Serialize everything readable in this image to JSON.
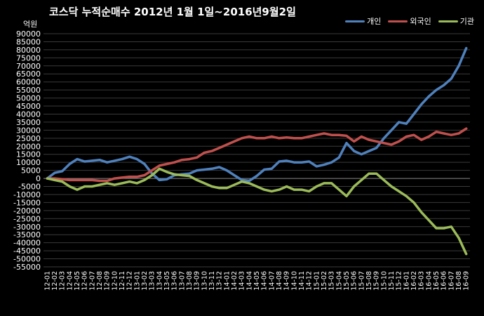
{
  "chart_data": {
    "type": "line",
    "title": "코스닥 누적순매수 2012년 1월 1일~2016년9월2일",
    "ylabel": "억원",
    "ylim": [
      -55000,
      90000
    ],
    "ytick_step": 5000,
    "grid": "horizontal",
    "legend_position": "top-right",
    "x": [
      "12-01",
      "12-02",
      "12-03",
      "12-04",
      "12-05",
      "12-06",
      "12-07",
      "12-08",
      "12-09",
      "12-10",
      "12-11",
      "12-12",
      "13-01",
      "13-02",
      "13-03",
      "13-04",
      "13-05",
      "13-06",
      "13-07",
      "13-08",
      "13-09",
      "13-10",
      "13-11",
      "13-12",
      "14-01",
      "14-02",
      "14-03",
      "14-04",
      "14-05",
      "14-06",
      "14-07",
      "14-08",
      "14-09",
      "14-10",
      "14-11",
      "14-12",
      "15-01",
      "15-02",
      "15-03",
      "15-04",
      "15-05",
      "15-06",
      "15-07",
      "15-08",
      "15-09",
      "15-10",
      "15-11",
      "15-12",
      "16-01",
      "16-02",
      "16-03",
      "16-04",
      "16-05",
      "16-06",
      "16-07",
      "16-08",
      "16-09"
    ],
    "series": [
      {
        "name": "개인",
        "color": "#4f81bd",
        "values": [
          0,
          3500,
          4500,
          9000,
          12000,
          10500,
          11000,
          11500,
          10000,
          11000,
          12000,
          13500,
          12000,
          9000,
          3000,
          -1000,
          -500,
          2000,
          2500,
          3000,
          5000,
          5500,
          6000,
          7000,
          5000,
          2000,
          -1000,
          -1500,
          1500,
          5500,
          6000,
          10500,
          11000,
          10000,
          10000,
          10500,
          7500,
          8500,
          10000,
          13000,
          22000,
          17000,
          15000,
          17000,
          19000,
          25000,
          30000,
          35000,
          34000,
          40000,
          46000,
          51000,
          55000,
          58000,
          62000,
          70000,
          81000
        ]
      },
      {
        "name": "외국인",
        "color": "#c0504d",
        "values": [
          0,
          0,
          -500,
          -1000,
          -1000,
          -1000,
          -1000,
          -1500,
          -1500,
          0,
          500,
          1000,
          1000,
          2000,
          5000,
          8000,
          9000,
          10000,
          11500,
          12000,
          13000,
          16000,
          17000,
          19000,
          21000,
          23000,
          25000,
          26000,
          25000,
          25000,
          26000,
          25000,
          25500,
          25000,
          25000,
          26000,
          27000,
          28000,
          27000,
          27000,
          26500,
          23000,
          26000,
          24000,
          23000,
          22000,
          21000,
          23000,
          26000,
          27000,
          24000,
          26000,
          29000,
          28000,
          27000,
          28000,
          31000
        ]
      },
      {
        "name": "기관",
        "color": "#9bbb59",
        "values": [
          0,
          -1000,
          -2000,
          -5000,
          -7000,
          -5000,
          -5000,
          -4000,
          -3000,
          -4000,
          -3000,
          -2000,
          -3000,
          -1000,
          2000,
          6000,
          4000,
          2500,
          2000,
          1500,
          -1000,
          -3000,
          -5000,
          -6000,
          -6000,
          -4000,
          -2000,
          -3000,
          -5000,
          -7000,
          -8000,
          -7000,
          -5000,
          -7000,
          -7000,
          -8000,
          -5000,
          -3000,
          -3000,
          -7000,
          -11000,
          -5000,
          -1000,
          3000,
          3000,
          -1000,
          -5000,
          -8000,
          -11000,
          -15000,
          -21000,
          -26000,
          -31000,
          -31000,
          -30000,
          -37000,
          -47000
        ]
      }
    ]
  }
}
